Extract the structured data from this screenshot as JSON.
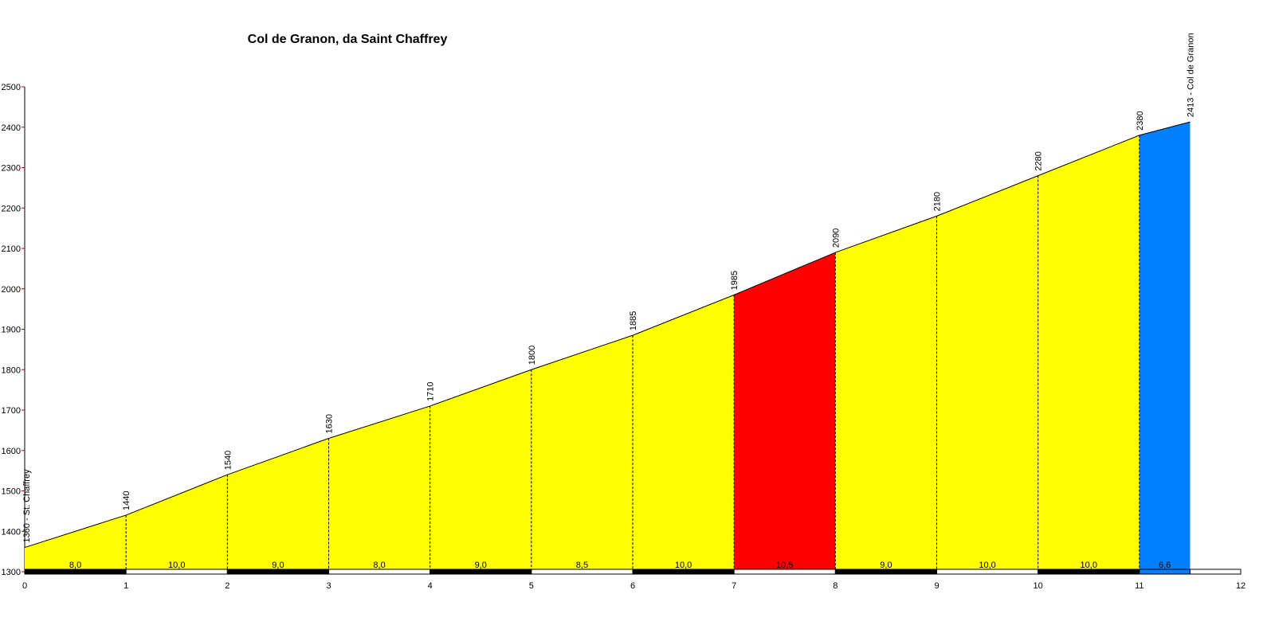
{
  "chart_data": {
    "type": "area",
    "title": "Col de Granon, da Saint Chaffrey",
    "xlabel": "",
    "ylabel": "",
    "xlim": [
      0,
      12
    ],
    "ylim": [
      1300,
      2500
    ],
    "x_ticks": [
      "0",
      "1",
      "2",
      "3",
      "4",
      "5",
      "6",
      "7",
      "8",
      "9",
      "10",
      "11",
      "12"
    ],
    "y_ticks": [
      "1300",
      "1400",
      "1500",
      "1600",
      "1700",
      "1800",
      "1900",
      "2000",
      "2100",
      "2200",
      "2300",
      "2400",
      "2500"
    ],
    "colors": {
      "moderate": "#ffff00",
      "steep": "#ff0000",
      "final": "#0080ff",
      "outline": "#000000"
    },
    "points": [
      {
        "x": 0,
        "elevation": 1360,
        "label": "1360 - St. Chaffrey"
      },
      {
        "x": 1,
        "elevation": 1440,
        "label": "1440"
      },
      {
        "x": 2,
        "elevation": 1540,
        "label": "1540"
      },
      {
        "x": 3,
        "elevation": 1630,
        "label": "1630"
      },
      {
        "x": 4,
        "elevation": 1710,
        "label": "1710"
      },
      {
        "x": 5,
        "elevation": 1800,
        "label": "1800"
      },
      {
        "x": 6,
        "elevation": 1885,
        "label": "1885"
      },
      {
        "x": 7,
        "elevation": 1985,
        "label": "1985"
      },
      {
        "x": 8,
        "elevation": 2090,
        "label": "2090"
      },
      {
        "x": 9,
        "elevation": 2180,
        "label": "2180"
      },
      {
        "x": 10,
        "elevation": 2280,
        "label": "2280"
      },
      {
        "x": 11,
        "elevation": 2380,
        "label": "2380"
      },
      {
        "x": 11.5,
        "elevation": 2413,
        "label": "2413 - Col de Granon"
      }
    ],
    "segments": [
      {
        "from": 0,
        "to": 1,
        "gradient": "8,0",
        "color": "#ffff00"
      },
      {
        "from": 1,
        "to": 2,
        "gradient": "10,0",
        "color": "#ffff00"
      },
      {
        "from": 2,
        "to": 3,
        "gradient": "9,0",
        "color": "#ffff00"
      },
      {
        "from": 3,
        "to": 4,
        "gradient": "8,0",
        "color": "#ffff00"
      },
      {
        "from": 4,
        "to": 5,
        "gradient": "9,0",
        "color": "#ffff00"
      },
      {
        "from": 5,
        "to": 6,
        "gradient": "8,5",
        "color": "#ffff00"
      },
      {
        "from": 6,
        "to": 7,
        "gradient": "10,0",
        "color": "#ffff00"
      },
      {
        "from": 7,
        "to": 8,
        "gradient": "10,5",
        "color": "#ff0000"
      },
      {
        "from": 8,
        "to": 9,
        "gradient": "9,0",
        "color": "#ffff00"
      },
      {
        "from": 9,
        "to": 10,
        "gradient": "10,0",
        "color": "#ffff00"
      },
      {
        "from": 10,
        "to": 11,
        "gradient": "10,0",
        "color": "#ffff00"
      },
      {
        "from": 11,
        "to": 11.5,
        "gradient": "6,6",
        "color": "#0080ff"
      }
    ]
  }
}
